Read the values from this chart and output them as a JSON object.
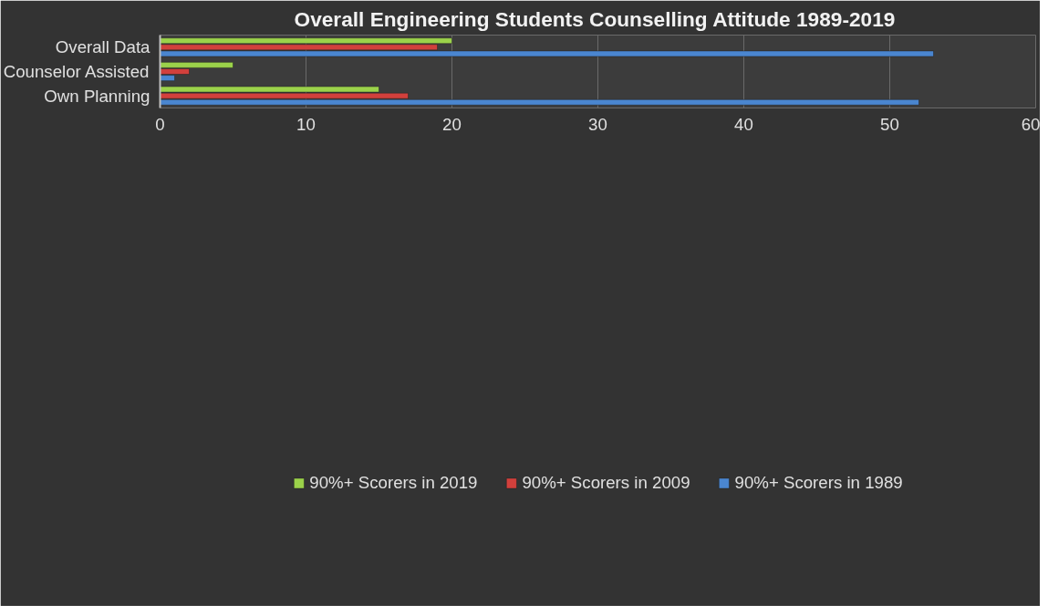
{
  "chart_data": {
    "type": "bar",
    "orientation": "horizontal",
    "title": "Overall Engineering Students Counselling Attitude  1989-2019",
    "categories": [
      "Overall Data",
      "Counselor Assisted",
      "Own Planning"
    ],
    "series": [
      {
        "name": "90%+ Scorers in 2019",
        "color": "#9bd24a",
        "values": [
          20,
          5,
          15
        ]
      },
      {
        "name": "90%+ Scorers in 2009",
        "color": "#d2403c",
        "values": [
          19,
          2,
          17
        ]
      },
      {
        "name": "90%+ Scorers in 1989",
        "color": "#4a86d0",
        "values": [
          53,
          1,
          52
        ]
      }
    ],
    "xlim": [
      0,
      60
    ],
    "xticks": [
      0,
      10,
      20,
      30,
      40,
      50,
      60
    ],
    "grid": "x",
    "legend": "bottom"
  }
}
